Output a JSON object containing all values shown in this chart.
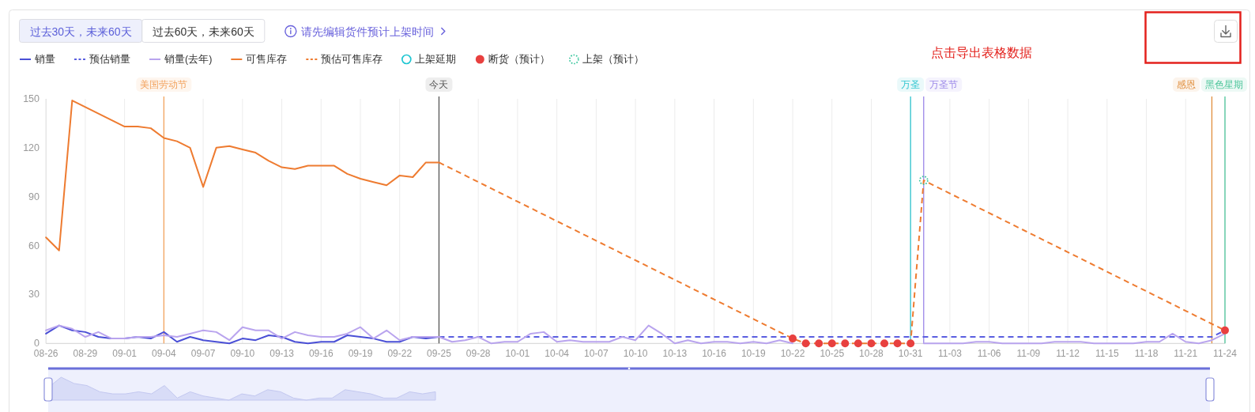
{
  "chart_data": {
    "type": "line",
    "annotations": [
      "过去30天，未来60天",
      "过去60天，未来60天",
      "请先编辑货件预计上架时间",
      "点击导出表格数据"
    ],
    "x": [
      "--08-26",
      "--08-27",
      "--08-28",
      "--08-29",
      "--08-30",
      "--08-31",
      "--09-01",
      "--09-02",
      "--09-03",
      "--09-04",
      "--09-05",
      "--09-06",
      "--09-07",
      "--09-08",
      "--09-09",
      "--09-10",
      "--09-11",
      "--09-12",
      "--09-13",
      "--09-14",
      "--09-15",
      "--09-16",
      "--09-17",
      "--09-18",
      "--09-19",
      "--09-20",
      "--09-21",
      "--09-22",
      "--09-23",
      "--09-24",
      "--09-25",
      "--09-26",
      "--09-27",
      "--09-28",
      "--09-29",
      "--09-30",
      "--10-01",
      "--10-02",
      "--10-03",
      "--10-04",
      "--10-05",
      "--10-06",
      "--10-07",
      "--10-08",
      "--10-09",
      "--10-10",
      "--10-11",
      "--10-12",
      "--10-13",
      "--10-14",
      "--10-15",
      "--10-16",
      "--10-17",
      "--10-18",
      "--10-19",
      "--10-20",
      "--10-21",
      "--10-22",
      "--10-23",
      "--10-24",
      "--10-25",
      "--10-26",
      "--10-27",
      "--10-28",
      "--10-29",
      "--10-30",
      "--10-31",
      "--11-01",
      "--11-02",
      "--11-03",
      "--11-04",
      "--11-05",
      "--11-06",
      "--11-07",
      "--11-08",
      "--11-09",
      "--11-10",
      "--11-11",
      "--11-12",
      "--11-13",
      "--11-14",
      "--11-15",
      "--11-16",
      "--11-17",
      "--11-18",
      "--11-19",
      "--11-20",
      "--11-21",
      "--11-22",
      "--11-23",
      "--11-24"
    ],
    "xlim": [
      "--08-26",
      "--11-24"
    ],
    "xticks": [
      {
        "value": "--08-26",
        "label": "08-26"
      },
      {
        "value": "--08-29",
        "label": "08-29"
      },
      {
        "value": "--09-01",
        "label": "09-01"
      },
      {
        "value": "--09-04",
        "label": "09-04"
      },
      {
        "value": "--09-07",
        "label": "09-07"
      },
      {
        "value": "--09-10",
        "label": "09-10"
      },
      {
        "value": "--09-13",
        "label": "09-13"
      },
      {
        "value": "--09-16",
        "label": "09-16"
      },
      {
        "value": "--09-19",
        "label": "09-19"
      },
      {
        "value": "--09-22",
        "label": "09-22"
      },
      {
        "value": "--09-25",
        "label": "09-25"
      },
      {
        "value": "--09-28",
        "label": "09-28"
      },
      {
        "value": "--10-01",
        "label": "10-01"
      },
      {
        "value": "--10-04",
        "label": "10-04"
      },
      {
        "value": "--10-07",
        "label": "10-07"
      },
      {
        "value": "--10-10",
        "label": "10-10"
      },
      {
        "value": "--10-13",
        "label": "10-13"
      },
      {
        "value": "--10-16",
        "label": "10-16"
      },
      {
        "value": "--10-19",
        "label": "10-19"
      },
      {
        "value": "--10-22",
        "label": "10-22"
      },
      {
        "value": "--10-25",
        "label": "10-25"
      },
      {
        "value": "--10-28",
        "label": "10-28"
      },
      {
        "value": "--10-31",
        "label": "10-31"
      },
      {
        "value": "--11-03",
        "label": "11-03"
      },
      {
        "value": "--11-06",
        "label": "11-06"
      },
      {
        "value": "--11-09",
        "label": "11-09"
      },
      {
        "value": "--11-12",
        "label": "11-12"
      },
      {
        "value": "--11-15",
        "label": "11-15"
      },
      {
        "value": "--11-18",
        "label": "11-18"
      },
      {
        "value": "--11-21",
        "label": "11-21"
      },
      {
        "value": "--11-24",
        "label": "11-24"
      }
    ],
    "ylim": [
      0,
      150
    ],
    "yticks": [
      0,
      30,
      60,
      90,
      120,
      150
    ],
    "grid": "x",
    "legend": "top left",
    "series": [
      {
        "name": "销量",
        "type": "line",
        "color": "#4a4fd6",
        "line_style": "solid",
        "marker": "none",
        "values": [
          6,
          11,
          8,
          7,
          4,
          3,
          3,
          4,
          3,
          7,
          1,
          4,
          2,
          1,
          0,
          3,
          2,
          5,
          4,
          1,
          0,
          1,
          1,
          5,
          4,
          3,
          1,
          1,
          4,
          3,
          4,
          null,
          null,
          null,
          null,
          null,
          null,
          null,
          null,
          null,
          null,
          null,
          null,
          null,
          null,
          null,
          null,
          null,
          null,
          null,
          null,
          null,
          null,
          null,
          null,
          null,
          null,
          null,
          null,
          null,
          null,
          null,
          null,
          null,
          null,
          null,
          null,
          null,
          null,
          null,
          null,
          null,
          null,
          null,
          null,
          null,
          null,
          null,
          null,
          null,
          null,
          null,
          null,
          null,
          null,
          null,
          null,
          null,
          null,
          null,
          null
        ]
      },
      {
        "name": "预估销量",
        "type": "line",
        "color": "#5a5ee0",
        "line_style": "dashed",
        "marker": "none",
        "values": [
          null,
          null,
          null,
          null,
          null,
          null,
          null,
          null,
          null,
          null,
          null,
          null,
          null,
          null,
          null,
          null,
          null,
          null,
          null,
          null,
          null,
          null,
          null,
          null,
          null,
          null,
          null,
          null,
          null,
          null,
          4,
          4,
          4,
          4,
          4,
          4,
          4,
          4,
          4,
          4,
          4,
          4,
          4,
          4,
          4,
          4,
          4,
          4,
          4,
          4,
          4,
          4,
          4,
          4,
          4,
          4,
          4,
          4,
          4,
          4,
          4,
          4,
          4,
          4,
          4,
          4,
          4,
          4,
          4,
          4,
          4,
          4,
          4,
          4,
          4,
          4,
          4,
          4,
          4,
          4,
          4,
          4,
          4,
          4,
          4,
          4,
          4,
          4,
          4,
          4,
          8
        ]
      },
      {
        "name": "销量(去年)",
        "type": "line",
        "color": "#b9a4ee",
        "line_style": "solid",
        "marker": "none",
        "values": [
          8,
          11,
          9,
          4,
          7,
          3,
          3,
          4,
          4,
          5,
          4,
          6,
          8,
          7,
          2,
          10,
          8,
          8,
          3,
          7,
          5,
          4,
          4,
          6,
          10,
          3,
          8,
          2,
          4,
          4,
          4,
          1,
          2,
          4,
          0,
          1,
          1,
          6,
          7,
          1,
          2,
          1,
          1,
          1,
          4,
          2,
          11,
          6,
          0,
          2,
          0,
          1,
          1,
          0,
          1,
          0,
          2,
          0,
          null,
          null,
          null,
          null,
          null,
          null,
          null,
          null,
          null,
          0,
          0,
          0,
          0,
          1,
          1,
          0,
          0,
          0,
          0,
          1,
          1,
          1,
          0,
          0,
          0,
          0,
          1,
          1,
          6,
          1,
          0,
          2,
          6
        ]
      },
      {
        "name": "可售库存",
        "type": "line",
        "color": "#ee7b30",
        "line_style": "solid",
        "marker": "none",
        "values": [
          65,
          57,
          149,
          145,
          141,
          137,
          133,
          133,
          132,
          126,
          124,
          120,
          96,
          120,
          121,
          119,
          117,
          112,
          108,
          107,
          109,
          109,
          109,
          104,
          101,
          99,
          97,
          103,
          102,
          111,
          111,
          null,
          null,
          null,
          null,
          null,
          null,
          null,
          null,
          null,
          null,
          null,
          null,
          null,
          null,
          null,
          null,
          null,
          null,
          null,
          null,
          null,
          null,
          null,
          null,
          null,
          null,
          null,
          null,
          null,
          null,
          null,
          null,
          null,
          null,
          null,
          null,
          null,
          null,
          null,
          null,
          null,
          null,
          null,
          null,
          null,
          null,
          null,
          null,
          null,
          null,
          null,
          null,
          null,
          null,
          null,
          null,
          null,
          null,
          null,
          null
        ]
      },
      {
        "name": "预估可售库存",
        "type": "line",
        "color": "#ee7b30",
        "line_style": "dashed",
        "marker": "none",
        "values": [
          null,
          null,
          null,
          null,
          null,
          null,
          null,
          null,
          null,
          null,
          null,
          null,
          null,
          null,
          null,
          null,
          null,
          null,
          null,
          null,
          null,
          null,
          null,
          null,
          null,
          null,
          null,
          null,
          null,
          null,
          111,
          107,
          103,
          99,
          95,
          91,
          87,
          83,
          79,
          75,
          71,
          67,
          63,
          59,
          55,
          51,
          47,
          43,
          39,
          35,
          31,
          27,
          23,
          19,
          15,
          11,
          7,
          3,
          0,
          0,
          0,
          0,
          0,
          0,
          0,
          0,
          0,
          100,
          96,
          92,
          88,
          84,
          80,
          76,
          72,
          68,
          64,
          60,
          56,
          52,
          48,
          44,
          40,
          36,
          32,
          28,
          24,
          20,
          16,
          12,
          8
        ]
      },
      {
        "name": "上架延期",
        "type": "scatter",
        "color": "#1fc6d2",
        "line_style": "solid",
        "marker": "circle",
        "values": [
          null,
          null,
          null,
          null,
          null,
          null,
          null,
          null,
          null,
          null,
          null,
          null,
          null,
          null,
          null,
          null,
          null,
          null,
          null,
          null,
          null,
          null,
          null,
          null,
          null,
          null,
          null,
          null,
          null,
          null,
          null,
          null,
          null,
          null,
          null,
          null,
          null,
          null,
          null,
          null,
          null,
          null,
          null,
          null,
          null,
          null,
          null,
          null,
          null,
          null,
          null,
          null,
          null,
          null,
          null,
          null,
          null,
          null,
          null,
          null,
          null,
          null,
          null,
          null,
          null,
          null,
          null,
          null,
          null,
          null,
          null,
          null,
          null,
          null,
          null,
          null,
          null,
          null,
          null,
          null,
          null,
          null,
          null,
          null,
          null,
          null,
          null,
          null,
          null,
          null,
          null
        ]
      },
      {
        "name": "断货（预计）",
        "type": "scatter",
        "color": "#e8403f",
        "marker": "circle",
        "values": [
          null,
          null,
          null,
          null,
          null,
          null,
          null,
          null,
          null,
          null,
          null,
          null,
          null,
          null,
          null,
          null,
          null,
          null,
          null,
          null,
          null,
          null,
          null,
          null,
          null,
          null,
          null,
          null,
          null,
          null,
          null,
          null,
          null,
          null,
          null,
          null,
          null,
          null,
          null,
          null,
          null,
          null,
          null,
          null,
          null,
          null,
          null,
          null,
          null,
          null,
          null,
          null,
          null,
          null,
          null,
          null,
          null,
          3,
          0,
          0,
          0,
          0,
          0,
          0,
          0,
          0,
          0,
          null,
          null,
          null,
          null,
          null,
          null,
          null,
          null,
          null,
          null,
          null,
          null,
          null,
          null,
          null,
          null,
          null,
          null,
          null,
          null,
          null,
          null,
          null,
          8
        ]
      },
      {
        "name": "上架（预计）",
        "type": "scatter",
        "color": "#33c49a",
        "line_style": "dotted",
        "marker": "circle",
        "values": [
          null,
          null,
          null,
          null,
          null,
          null,
          null,
          null,
          null,
          null,
          null,
          null,
          null,
          null,
          null,
          null,
          null,
          null,
          null,
          null,
          null,
          null,
          null,
          null,
          null,
          null,
          null,
          null,
          null,
          null,
          null,
          null,
          null,
          null,
          null,
          null,
          null,
          null,
          null,
          null,
          null,
          null,
          null,
          null,
          null,
          null,
          null,
          null,
          null,
          null,
          null,
          null,
          null,
          null,
          null,
          null,
          null,
          null,
          null,
          null,
          null,
          null,
          null,
          null,
          null,
          null,
          null,
          100,
          null,
          null,
          null,
          null,
          null,
          null,
          null,
          null,
          null,
          null,
          null,
          null,
          null,
          null,
          null,
          null,
          null,
          null,
          null,
          null,
          null,
          null,
          null
        ]
      }
    ],
    "ref_lines": [
      {
        "axis": "x",
        "value": "--09-04",
        "label": "美国劳动节",
        "color": "#f2a35e"
      },
      {
        "axis": "x",
        "value": "--09-25",
        "label": "今天",
        "color": "#555555"
      },
      {
        "axis": "x",
        "value": "--10-31",
        "label": "万圣",
        "color": "#2fc5d0"
      },
      {
        "axis": "x",
        "value": "--11-01",
        "label": "万圣节",
        "color": "#9b87e8"
      },
      {
        "axis": "x",
        "value": "--11-23",
        "label": "感恩",
        "color": "#e08e3c"
      },
      {
        "axis": "x",
        "value": "--11-24",
        "label": "黑色星期",
        "color": "#4cc59a"
      }
    ]
  }
}
